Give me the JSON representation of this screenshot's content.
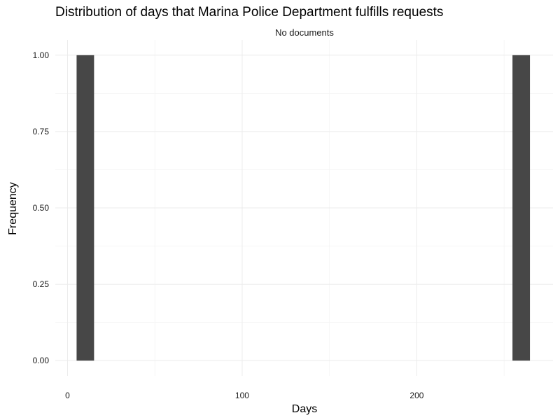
{
  "chart_data": {
    "type": "bar",
    "title": "Distribution of days that Marina Police Department fulfills requests",
    "facet_label": "No documents",
    "xlabel": "Days",
    "ylabel": "Frequency",
    "x_ticks": [
      0,
      100,
      200
    ],
    "y_ticks": [
      "0.00",
      "0.25",
      "0.50",
      "0.75",
      "1.00"
    ],
    "xlim": [
      -7,
      278
    ],
    "ylim": [
      -0.05,
      1.05
    ],
    "grid": true,
    "bar_color": "#474747",
    "bins": [
      {
        "start": 5.2,
        "end": 15.2,
        "count": 1
      },
      {
        "start": 254.8,
        "end": 264.8,
        "count": 1
      }
    ]
  }
}
